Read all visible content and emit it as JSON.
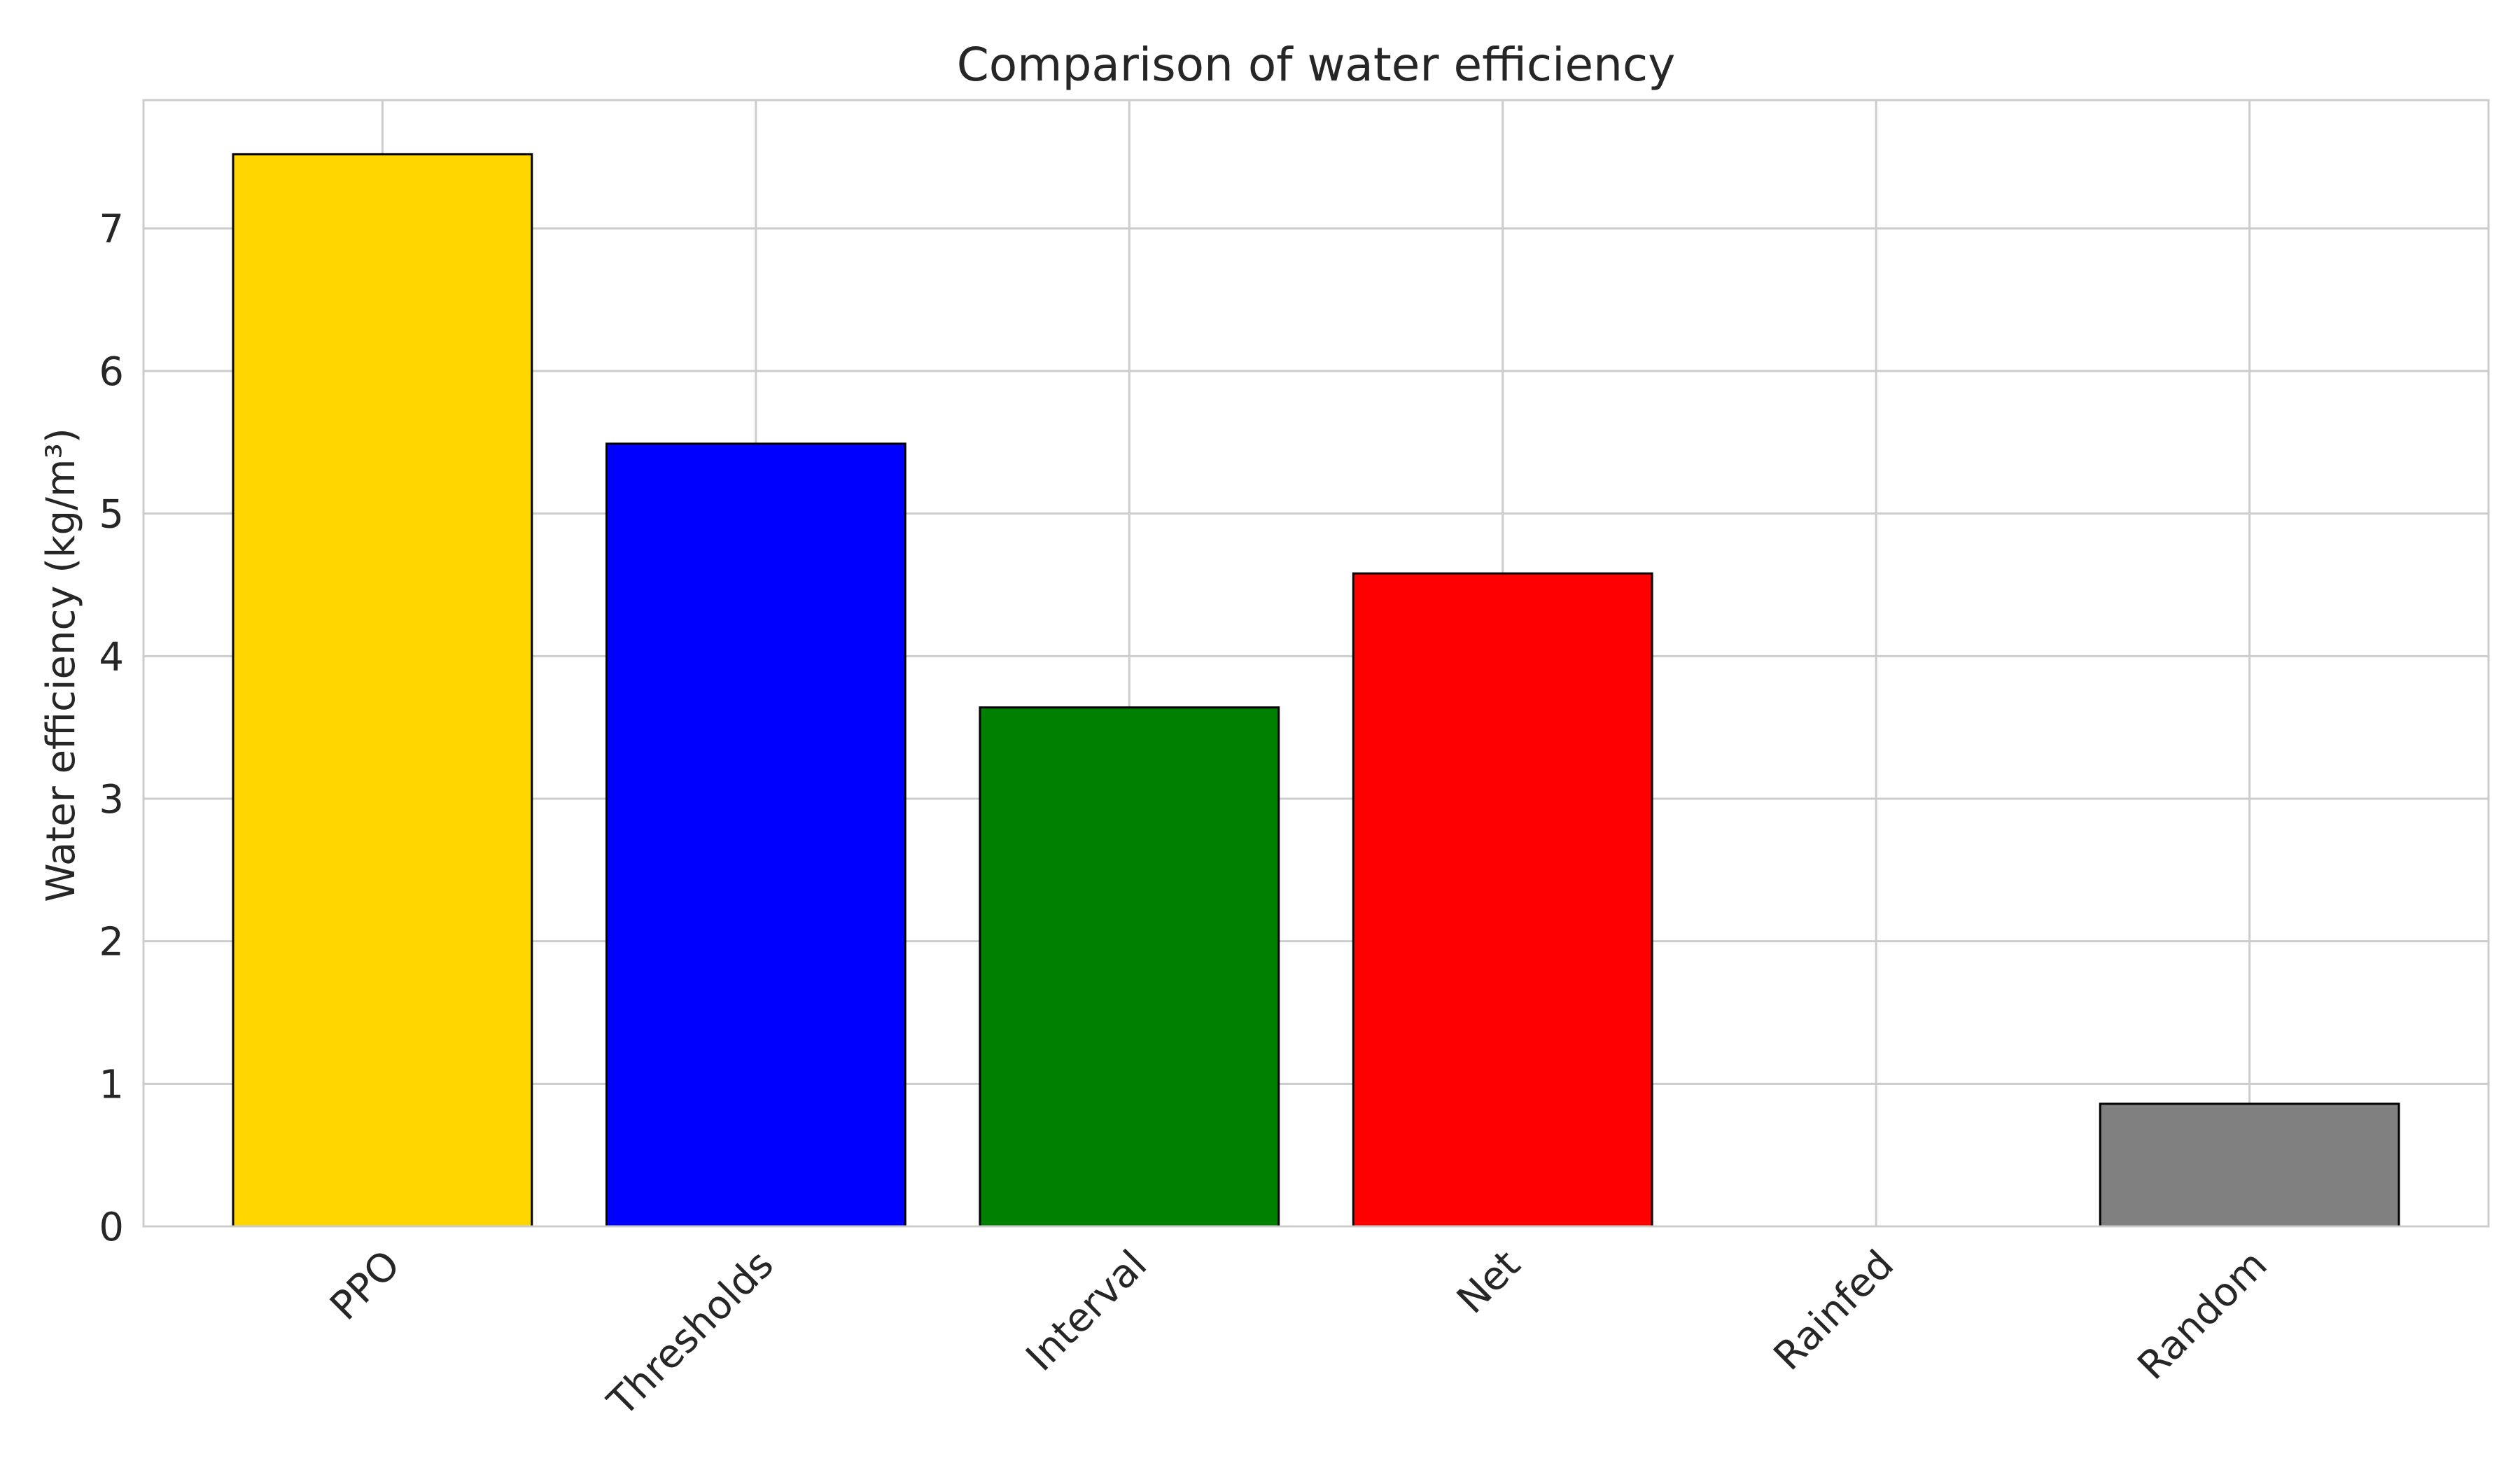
{
  "chart_data": {
    "type": "bar",
    "title": "Comparison of water efficiency",
    "xlabel": "",
    "ylabel": "Water efficiency (kg/m³)",
    "categories": [
      "PPO",
      "Thresholds",
      "Interval",
      "Net",
      "Rainfed",
      "Random"
    ],
    "values": [
      7.52,
      5.49,
      3.64,
      4.58,
      0,
      0.86
    ],
    "colors": [
      "#ffd700",
      "#0000ff",
      "#008000",
      "#ff0000",
      "#ffffff",
      "#808080"
    ],
    "bar_edge_color": "#000000",
    "ylim": [
      0,
      7.9
    ],
    "yticks": [
      0,
      1,
      2,
      3,
      4,
      5,
      6,
      7
    ],
    "grid": true,
    "grid_color": "#cccccc",
    "x_tick_rotation": -45,
    "legend": "none"
  }
}
